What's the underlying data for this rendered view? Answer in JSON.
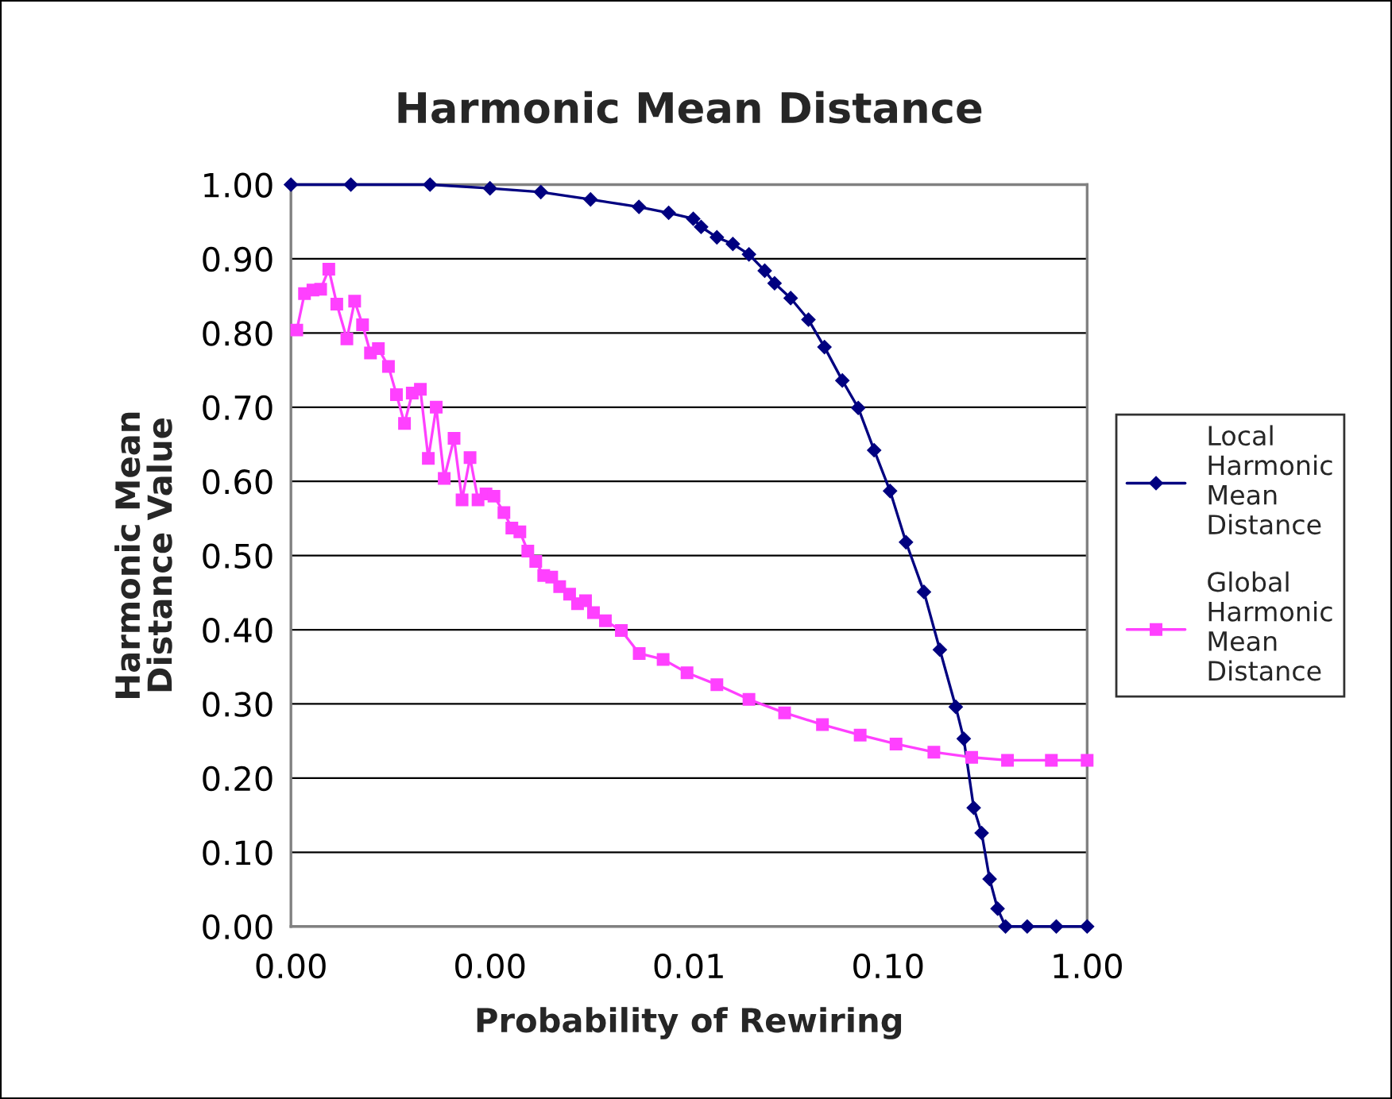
{
  "chart_data": {
    "type": "line",
    "title": "Harmonic Mean Distance",
    "xlabel": "Probability of Rewiring",
    "ylabel": "Harmonic Mean\nDistance Value",
    "log": "x",
    "xlim": [
      0.0001,
      1
    ],
    "xticks": [
      {
        "value": 0.0001,
        "label": "0.00"
      },
      {
        "value": 0.001,
        "label": "0.00"
      },
      {
        "value": 0.01,
        "label": "0.01"
      },
      {
        "value": 0.1,
        "label": "0.10"
      },
      {
        "value": 1,
        "label": "1.00"
      }
    ],
    "ylim": [
      0,
      1
    ],
    "yticks": [
      {
        "value": 0,
        "label": "0.00"
      },
      {
        "value": 0.1,
        "label": "0.10"
      },
      {
        "value": 0.2,
        "label": "0.20"
      },
      {
        "value": 0.3,
        "label": "0.30"
      },
      {
        "value": 0.4,
        "label": "0.40"
      },
      {
        "value": 0.5,
        "label": "0.50"
      },
      {
        "value": 0.6,
        "label": "0.60"
      },
      {
        "value": 0.7,
        "label": "0.70"
      },
      {
        "value": 0.8,
        "label": "0.80"
      },
      {
        "value": 0.9,
        "label": "0.90"
      },
      {
        "value": 1,
        "label": "1.00"
      }
    ],
    "grid": "y",
    "legend": "right",
    "series": [
      {
        "name": "Local\nHarmonic\nMean\nDistance",
        "color": "#000080",
        "marker": "diamond",
        "x": [
          0.0001,
          0.0002,
          0.0005,
          0.001,
          0.0018,
          0.0032,
          0.0056,
          0.0079,
          0.0105,
          0.0115,
          0.0138,
          0.0166,
          0.02,
          0.024,
          0.0269,
          0.0324,
          0.0398,
          0.0479,
          0.0589,
          0.0708,
          0.0851,
          0.1023,
          0.123,
          0.1514,
          0.182,
          0.2188,
          0.2399,
          0.2692,
          0.2951,
          0.3236,
          0.3548,
          0.389,
          0.5,
          0.7,
          1.0
        ],
        "values": [
          1.0,
          1.0,
          1.0,
          0.995,
          0.99,
          0.98,
          0.97,
          0.962,
          0.954,
          0.943,
          0.929,
          0.92,
          0.906,
          0.884,
          0.867,
          0.847,
          0.818,
          0.781,
          0.736,
          0.699,
          0.642,
          0.587,
          0.518,
          0.451,
          0.373,
          0.296,
          0.253,
          0.16,
          0.126,
          0.064,
          0.024,
          0.0,
          0.0,
          0.0,
          0.0
        ]
      },
      {
        "name": "Global\nHarmonic\nMean\nDistance",
        "color": "#ff40ff",
        "marker": "square",
        "x": [
          0.000107,
          0.000117,
          0.000129,
          0.000141,
          0.000155,
          0.00017,
          0.000191,
          0.000209,
          0.000229,
          0.000251,
          0.000275,
          0.000309,
          0.000339,
          0.000372,
          0.000407,
          0.000447,
          0.00049,
          0.000537,
          0.000589,
          0.00066,
          0.000724,
          0.000794,
          0.000871,
          0.000955,
          0.001047,
          0.001175,
          0.001288,
          0.001413,
          0.001549,
          0.001698,
          0.001862,
          0.002042,
          0.002239,
          0.002512,
          0.002754,
          0.00302,
          0.003311,
          0.0038,
          0.00457,
          0.00562,
          0.00741,
          0.00977,
          0.0138,
          0.02,
          0.0302,
          0.0468,
          0.0724,
          0.1096,
          0.1698,
          0.263,
          0.398,
          0.661,
          1.0
        ],
        "values": [
          0.804,
          0.853,
          0.858,
          0.859,
          0.886,
          0.839,
          0.792,
          0.843,
          0.811,
          0.773,
          0.779,
          0.755,
          0.717,
          0.678,
          0.719,
          0.724,
          0.631,
          0.7,
          0.604,
          0.658,
          0.575,
          0.632,
          0.575,
          0.583,
          0.58,
          0.558,
          0.537,
          0.532,
          0.506,
          0.492,
          0.473,
          0.471,
          0.458,
          0.448,
          0.435,
          0.439,
          0.423,
          0.412,
          0.399,
          0.368,
          0.36,
          0.342,
          0.326,
          0.306,
          0.288,
          0.272,
          0.258,
          0.246,
          0.235,
          0.228,
          0.224,
          0.224,
          0.224
        ]
      }
    ]
  }
}
